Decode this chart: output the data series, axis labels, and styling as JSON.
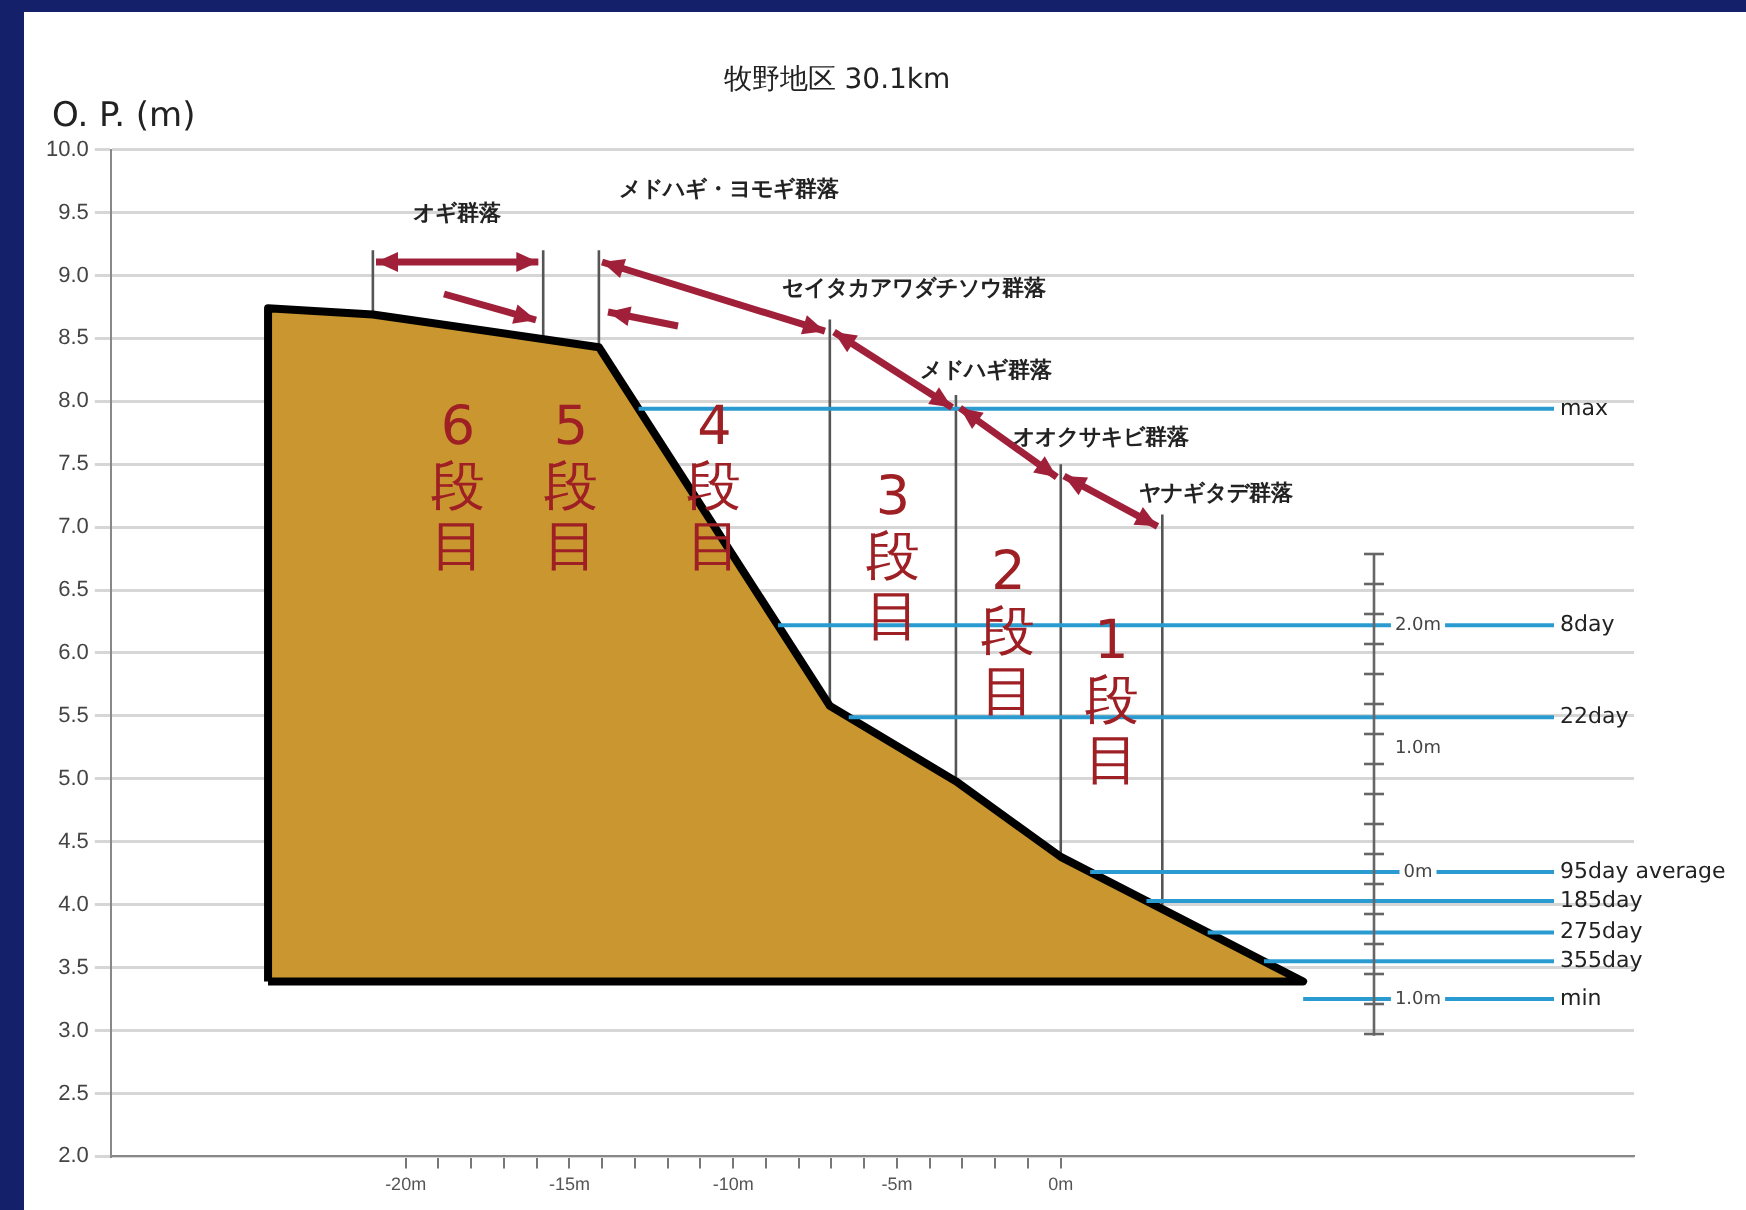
{
  "chart_data": {
    "type": "area",
    "title": "牧野地区 30.1km",
    "ylabel": "O. P. (m)",
    "xlim": [
      -29,
      17.5
    ],
    "ylim": [
      2,
      10
    ],
    "xticks": [
      {
        "value": -20,
        "label": "-20m"
      },
      {
        "value": -19,
        "label": null
      },
      {
        "value": -18,
        "label": null
      },
      {
        "value": -17,
        "label": null
      },
      {
        "value": -16,
        "label": null
      },
      {
        "value": -15,
        "label": "-15m"
      },
      {
        "value": -14,
        "label": null
      },
      {
        "value": -13,
        "label": null
      },
      {
        "value": -12,
        "label": null
      },
      {
        "value": -11,
        "label": null
      },
      {
        "value": -10,
        "label": "-10m"
      },
      {
        "value": -9,
        "label": null
      },
      {
        "value": -8,
        "label": null
      },
      {
        "value": -7,
        "label": null
      },
      {
        "value": -6,
        "label": null
      },
      {
        "value": -5,
        "label": "-5m"
      },
      {
        "value": -4,
        "label": null
      },
      {
        "value": -3,
        "label": null
      },
      {
        "value": -2,
        "label": null
      },
      {
        "value": -1,
        "label": null
      },
      {
        "value": 0,
        "label": "0m"
      }
    ],
    "yticks": [
      {
        "value": 2,
        "label": "2.0"
      },
      2.5,
      {
        "value": 3,
        "label": "3.0"
      },
      3.5,
      {
        "value": 4,
        "label": "4.0"
      },
      4.5,
      {
        "value": 5,
        "label": "5.0"
      },
      5.5,
      {
        "value": 6,
        "label": "6.0"
      },
      6.5,
      {
        "value": 7,
        "label": "7.0"
      },
      7.5,
      {
        "value": 8,
        "label": "8.0"
      },
      8.5,
      {
        "value": 9,
        "label": "9.0"
      },
      9.5,
      {
        "value": 10,
        "label": "10.0"
      }
    ],
    "grid": "y",
    "legend": false,
    "series": [
      {
        "type": "area",
        "color": "#c9962f",
        "x": [
          -24.2,
          -24.2,
          -21,
          -14.1,
          -7.05,
          -3.2,
          0,
          7.4,
          -24.2
        ],
        "values": [
          3.39,
          8.74,
          8.69,
          8.43,
          5.58,
          4.98,
          4.38,
          3.39,
          3.39
        ]
      },
      {
        "type": "line",
        "color": "#555555",
        "x": [
          -21,
          -21
        ],
        "values": [
          8.69,
          9.2
        ]
      },
      {
        "type": "line",
        "color": "#555555",
        "x": [
          -15.8,
          -15.8
        ],
        "values": [
          8.5,
          9.2
        ]
      },
      {
        "type": "line",
        "color": "#555555",
        "x": [
          -14.1,
          -14.1
        ],
        "values": [
          8.43,
          9.2
        ]
      },
      {
        "type": "line",
        "color": "#555555",
        "x": [
          -7.05,
          -7.05
        ],
        "values": [
          5.58,
          8.65
        ]
      },
      {
        "type": "line",
        "color": "#555555",
        "x": [
          -3.2,
          -3.2
        ],
        "values": [
          4.98,
          8.05
        ]
      },
      {
        "type": "line",
        "color": "#555555",
        "x": [
          0,
          0
        ],
        "values": [
          4.38,
          7.5
        ]
      },
      {
        "type": "line",
        "color": "#555555",
        "x": [
          3.1,
          3.1
        ],
        "values": [
          4.0,
          7.1
        ]
      }
    ],
    "ref_lines": [
      {
        "axis": "y",
        "value": 7.94,
        "label": "max",
        "color": "#2a9bd0"
      },
      {
        "axis": "y",
        "value": 6.22,
        "label": "8day",
        "color": "#2a9bd0"
      },
      {
        "axis": "y",
        "value": 5.49,
        "label": "22day",
        "color": "#2a9bd0"
      },
      {
        "axis": "y",
        "value": 4.26,
        "label": "95day average",
        "color": "#2a9bd0"
      },
      {
        "axis": "y",
        "value": 4.03,
        "label": "185day",
        "color": "#2a9bd0"
      },
      {
        "axis": "y",
        "value": 3.78,
        "label": "275day",
        "color": "#2a9bd0"
      },
      {
        "axis": "y",
        "value": 3.55,
        "label": "355day",
        "color": "#2a9bd0"
      },
      {
        "axis": "y",
        "value": 3.25,
        "label": "min",
        "color": "#2a9bd0"
      }
    ],
    "annotations": [
      {
        "text": "オギ群落",
        "x": -15.8,
        "y": 9.2
      },
      {
        "text": "メドハギ・ヨモギ群落",
        "x": -14.1,
        "y": 9.2
      },
      {
        "text": "セイタカアワダチソウ群落",
        "x": -7.05,
        "y": 8.65
      },
      {
        "text": "メドハギ群落",
        "x": -3.2,
        "y": 8.05
      },
      {
        "text": "オオクサキビ群落",
        "x": 0,
        "y": 7.5
      },
      {
        "text": "ヤナギタデ群落",
        "x": 3.1,
        "y": 7.1
      },
      "6段目",
      "5段目",
      "4段目",
      "3段目",
      "2段目",
      "1段目",
      "2.0m",
      "1.0m",
      "0m",
      "1.0m"
    ]
  }
}
